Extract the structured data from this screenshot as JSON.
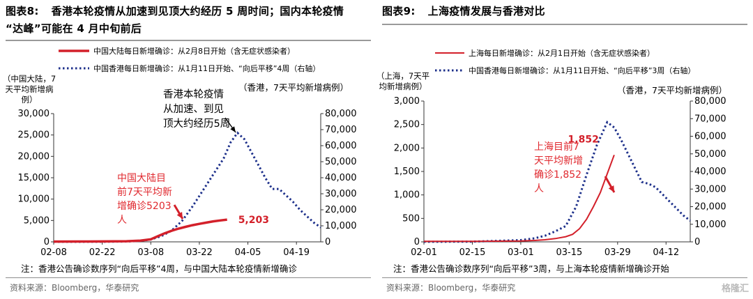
{
  "panels": [
    {
      "fig_label": "图表8:",
      "title_line1": "香港本轮疫情从加速到见顶大约经历 5 周时间；国内本轮疫情",
      "title_line2": "“达峰”可能在 4 月中旬前后",
      "legend_mainland": "中国大陆每日新增确诊：从2月8日开始（含无症状感染者）",
      "legend_hk": "中国香港每日新增确诊：从1月11日开始、“向后平移”4周（右轴）",
      "left_axis_title": [
        "（中国大陆，7",
        "天平均新增病",
        "例）"
      ],
      "right_axis_title": "（香港，7天平均新增病例）",
      "annot_hk": [
        "香港本轮疫情",
        "从加速、到见",
        "顶大约经历5周"
      ],
      "annot_mainland": [
        "中国大陆目",
        "前7天平均新",
        "增确诊5203",
        "人"
      ],
      "end_label": "5,203",
      "note": "注：香港公告确诊数序列“向后平移”4周，与中国大陆本轮疫情新增确诊",
      "source": "资料来源：Bloomberg，华泰研究"
    },
    {
      "fig_label": "图表9:",
      "title_line1": "上海疫情发展与香港对比",
      "legend_mainland": "上海每日新增确诊：从2月1日开始（含无症状感染者）",
      "legend_hk": "中国香港每日新增确诊：从1月11日开始、“向后平移”3周（右轴）",
      "left_axis_title": [
        "（上海，7天平",
        "均新增病例）"
      ],
      "right_axis_title": "（香港，7天平均新增病例）",
      "annot_mainland": [
        "上海目前7",
        "天平均新增",
        "确诊1,852",
        "人"
      ],
      "end_label": "1,852",
      "note": "注：香港公告确诊数序列“向后平移”3周，与上海本轮疫情新增确诊开始",
      "source": "资料来源：Bloomberg，华泰研究",
      "watermark": "格隆汇"
    }
  ],
  "colors": {
    "mainland": "#d3202a",
    "hk": "#1c2f8a",
    "axis": "#333333",
    "annotation_red": "#e0282e"
  },
  "chart_data": [
    {
      "type": "line",
      "x_ticks": [
        "02-08",
        "02-22",
        "03-08",
        "03-22",
        "04-05",
        "04-19"
      ],
      "x_range": [
        "02-08",
        "04-26"
      ],
      "y_left": {
        "lim": [
          0,
          30000
        ],
        "ticks": [
          "0",
          "5,000",
          "10,000",
          "15,000",
          "20,000",
          "25,000",
          "30,000"
        ]
      },
      "y_right": {
        "lim": [
          0,
          80000
        ],
        "ticks": [
          "0",
          "10,000",
          "20,000",
          "30,000",
          "40,000",
          "50,000",
          "60,000",
          "70,000",
          "80,000"
        ]
      },
      "series": [
        {
          "name": "中国大陆每日新增确诊：从2月8日开始（含无症状感染者）",
          "axis": "left",
          "x": [
            "02-08",
            "02-15",
            "02-22",
            "03-01",
            "03-05",
            "03-08",
            "03-10",
            "03-12",
            "03-14",
            "03-16",
            "03-18",
            "03-20",
            "03-22",
            "03-24",
            "03-26",
            "03-28",
            "03-30"
          ],
          "y": [
            60,
            75,
            100,
            150,
            300,
            600,
            1300,
            2000,
            2600,
            3100,
            3500,
            3900,
            4200,
            4500,
            4800,
            5000,
            5203
          ]
        },
        {
          "name": "中国香港每日新增确诊：从1月11日开始、“向后平移”4周（右轴）",
          "axis": "right",
          "x": [
            "02-08",
            "02-22",
            "03-01",
            "03-05",
            "03-08",
            "03-11",
            "03-14",
            "03-17",
            "03-20",
            "03-23",
            "03-26",
            "03-29",
            "03-31",
            "04-02",
            "04-04",
            "04-06",
            "04-08",
            "04-10",
            "04-12",
            "04-14",
            "04-16",
            "04-18",
            "04-20",
            "04-22",
            "04-24",
            "04-26"
          ],
          "y": [
            20,
            60,
            200,
            600,
            1500,
            3500,
            7000,
            13000,
            22000,
            32000,
            42000,
            52000,
            62000,
            68000,
            64000,
            56000,
            48000,
            40000,
            33000,
            33000,
            29000,
            25000,
            20000,
            16000,
            12000,
            9000
          ]
        }
      ]
    },
    {
      "type": "line",
      "x_ticks": [
        "02-01",
        "02-15",
        "03-01",
        "03-15",
        "03-29",
        "04-12"
      ],
      "x_range": [
        "02-01",
        "04-19"
      ],
      "y_left": {
        "lim": [
          0,
          3000
        ],
        "ticks": [
          "0",
          "500",
          "1,000",
          "1,500",
          "2,000",
          "2,500",
          "3,000"
        ]
      },
      "y_right": {
        "lim": [
          0,
          80000
        ],
        "ticks": [
          "0",
          "10,000",
          "20,000",
          "30,000",
          "40,000",
          "50,000",
          "60,000",
          "70,000",
          "80,000"
        ]
      },
      "series": [
        {
          "name": "上海每日新增确诊：从2月1日开始（含无症状感染者）",
          "axis": "left",
          "x": [
            "02-01",
            "02-08",
            "02-15",
            "02-22",
            "03-01",
            "03-05",
            "03-08",
            "03-11",
            "03-14",
            "03-16",
            "03-18",
            "03-20",
            "03-22",
            "03-24",
            "03-26",
            "03-28"
          ],
          "y": [
            10,
            10,
            12,
            15,
            20,
            30,
            45,
            70,
            110,
            160,
            280,
            480,
            750,
            1050,
            1450,
            1852
          ]
        },
        {
          "name": "中国香港每日新增确诊：从1月11日开始、“向后平移”3周（右轴）",
          "axis": "right",
          "x": [
            "02-01",
            "02-15",
            "03-01",
            "03-05",
            "03-08",
            "03-11",
            "03-14",
            "03-17",
            "03-20",
            "03-23",
            "03-26",
            "03-28",
            "03-30",
            "04-01",
            "04-03",
            "04-05",
            "04-07",
            "04-09",
            "04-11",
            "04-13",
            "04-15",
            "04-17",
            "04-19"
          ],
          "y": [
            20,
            100,
            1000,
            2000,
            3500,
            6000,
            9000,
            20000,
            38000,
            55000,
            68000,
            65000,
            58000,
            50000,
            42000,
            34000,
            33000,
            31000,
            27000,
            23000,
            19000,
            15000,
            12000
          ]
        }
      ]
    }
  ]
}
